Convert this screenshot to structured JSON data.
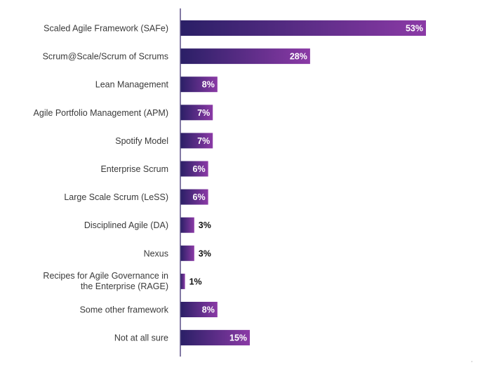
{
  "chart_data": {
    "type": "bar",
    "orientation": "horizontal",
    "title": "",
    "xlabel": "",
    "ylabel": "",
    "xlim": [
      0,
      53
    ],
    "grid": false,
    "legend": "none",
    "categories": [
      "Scaled Agile Framework (SAFe)",
      "Scrum@Scale/Scrum of Scrums",
      "Lean Management",
      "Agile Portfolio Management (APM)",
      "Spotify Model",
      "Enterprise Scrum",
      "Large Scale Scrum (LeSS)",
      "Disciplined Agile (DA)",
      "Nexus",
      "Recipes for Agile Governance in the Enterprise (RAGE)",
      "Some other framework",
      "Not at all sure"
    ],
    "values": [
      53,
      28,
      8,
      7,
      7,
      6,
      6,
      3,
      3,
      1,
      8,
      15
    ],
    "value_labels": [
      "53%",
      "28%",
      "8%",
      "7%",
      "7%",
      "6%",
      "6%",
      "3%",
      "3%",
      "1%",
      "8%",
      "15%"
    ],
    "colors": {
      "bar_start": "#2a1f66",
      "bar_end": "#8b3aa6",
      "axis": "#5a4f86",
      "label_inside": "#ffffff",
      "label_outside": "#111111"
    }
  },
  "corner_mark": "'"
}
